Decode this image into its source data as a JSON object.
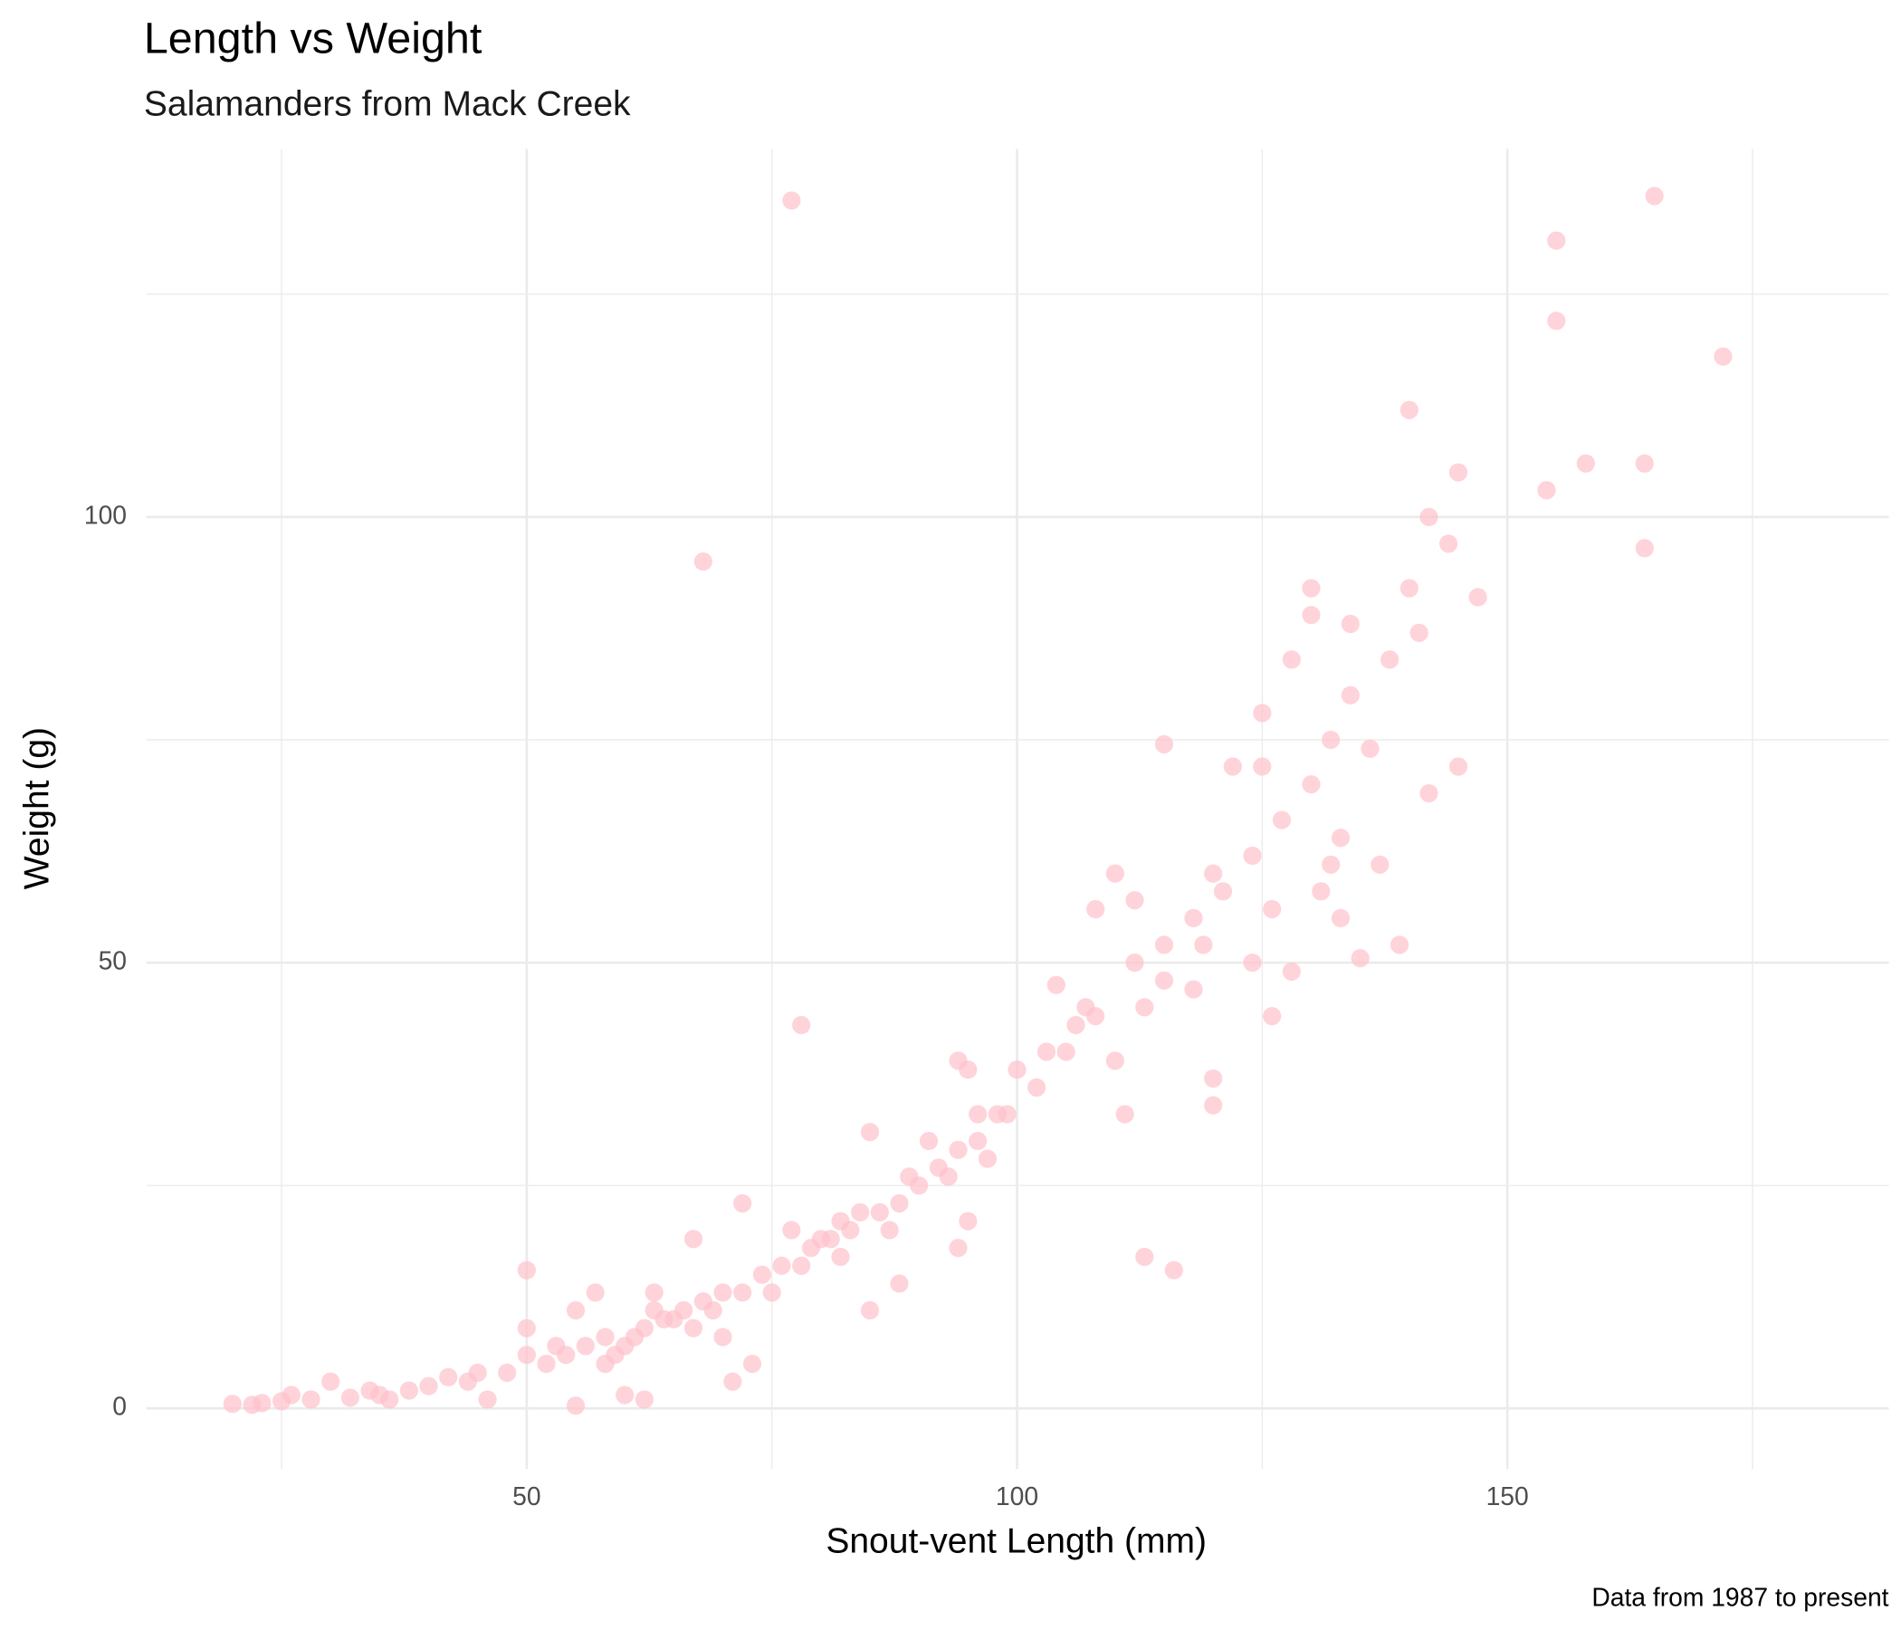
{
  "chart_data": {
    "type": "scatter",
    "title": "Length vs Weight",
    "subtitle": "Salamanders from Mack Creek",
    "x_label": "Snout-vent Length (mm)",
    "y_label": "Weight (g)",
    "caption": "Data from 1987 to present",
    "color": "#FFC0CB",
    "alpha": 0.7,
    "grid": true,
    "xlim": [
      11.2,
      188.9
    ],
    "ylim": [
      -6.8,
      141.3
    ],
    "xticks": [
      50,
      100,
      150
    ],
    "yticks": [
      0,
      50,
      100
    ],
    "x_minor_ticks": [
      25,
      75,
      125,
      175
    ],
    "y_minor_ticks": [
      25,
      75,
      125
    ],
    "x": [
      77,
      68,
      78,
      155,
      155,
      165,
      172,
      140,
      145,
      158,
      164,
      154,
      164,
      142,
      144,
      113,
      116,
      115,
      120,
      120,
      140,
      147,
      130,
      130,
      125,
      128,
      134,
      136,
      142,
      145,
      138,
      141,
      133,
      137,
      139,
      135,
      128,
      126,
      118,
      120,
      122,
      125,
      110,
      108,
      112,
      115,
      104,
      106,
      103,
      110,
      111,
      100,
      96,
      95,
      94,
      97,
      98,
      91,
      89,
      85,
      85,
      88,
      82,
      84,
      80,
      78,
      75,
      72,
      72,
      70,
      71,
      73,
      67,
      65,
      63,
      62,
      60,
      57,
      58,
      55,
      55,
      53,
      50,
      50,
      50,
      48,
      45,
      46,
      42,
      40,
      38,
      35,
      32,
      30,
      28,
      25,
      23,
      20,
      22,
      26,
      34,
      36,
      44,
      52,
      54,
      56,
      58,
      61,
      64,
      66,
      68,
      70,
      74,
      76,
      79,
      81,
      83,
      86,
      88,
      90,
      92,
      94,
      96,
      99,
      102,
      105,
      108,
      112,
      115,
      118,
      121,
      124,
      127,
      130,
      132,
      134,
      62,
      60,
      63,
      59,
      67,
      69,
      77,
      82,
      87,
      93,
      95,
      94,
      107,
      113,
      119,
      124,
      126,
      131,
      133,
      132
    ],
    "values": [
      135.5,
      95,
      43,
      131,
      122,
      136,
      118,
      112,
      105,
      106,
      106,
      103,
      96.5,
      100,
      97,
      17,
      15.5,
      74.5,
      37,
      34,
      92,
      91,
      92,
      89,
      78,
      84,
      88,
      74,
      69,
      72,
      84,
      87,
      64,
      61,
      52,
      50.5,
      49,
      44,
      47,
      60,
      72,
      72,
      60,
      56,
      57,
      48,
      47.5,
      43,
      40,
      39,
      33,
      38,
      33,
      38,
      39,
      28,
      33,
      30,
      26,
      31,
      11,
      14,
      17,
      22,
      19,
      16,
      13,
      23,
      13,
      8,
      3,
      5,
      19,
      10,
      11,
      9,
      7,
      13,
      5,
      11,
      0.3,
      7,
      15.5,
      9,
      6,
      4,
      4,
      1,
      3.5,
      2.5,
      2,
      1.5,
      1.2,
      3,
      1,
      0.8,
      0.6,
      0.5,
      0.4,
      1.5,
      2,
      1,
      3,
      5,
      6,
      7,
      8,
      8,
      10,
      11,
      12,
      13,
      15,
      16,
      18,
      19,
      20,
      22,
      23,
      25,
      27,
      29,
      30,
      33,
      36,
      40,
      44,
      50,
      52,
      55,
      58,
      62,
      66,
      70,
      75,
      80,
      1,
      1.5,
      13,
      6,
      9,
      11,
      20,
      21,
      20,
      26,
      21,
      18,
      45,
      45,
      52,
      50,
      56,
      58,
      55,
      61
    ]
  }
}
